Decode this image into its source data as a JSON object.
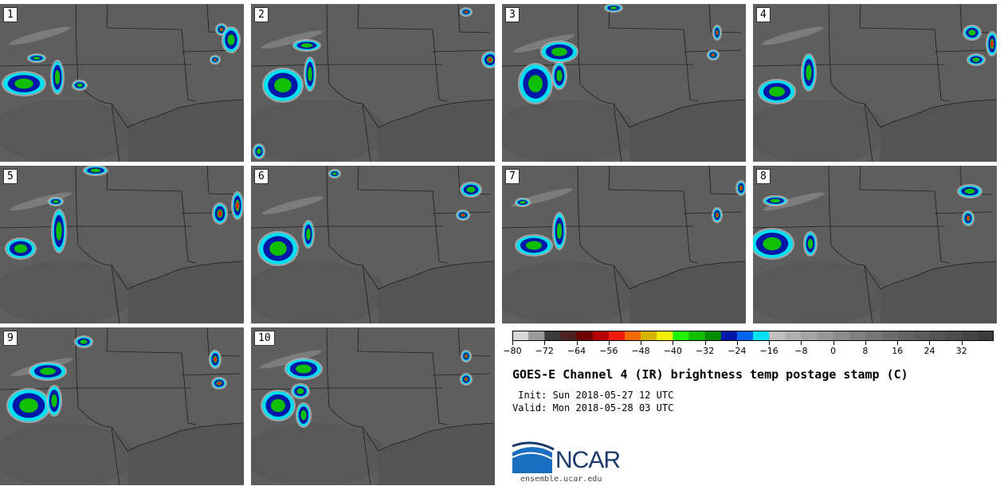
{
  "panels": [
    {
      "label": "1"
    },
    {
      "label": "2"
    },
    {
      "label": "3"
    },
    {
      "label": "4"
    },
    {
      "label": "5"
    },
    {
      "label": "6"
    },
    {
      "label": "7"
    },
    {
      "label": "8"
    },
    {
      "label": "9"
    },
    {
      "label": "10"
    }
  ],
  "colorbar": {
    "colors": [
      "#d8d8d8",
      "#9a9a9a",
      "#3a3a3a",
      "#4a2020",
      "#6e0000",
      "#b40000",
      "#ee1c0c",
      "#f26a00",
      "#d4b400",
      "#f0f000",
      "#22f000",
      "#10c000",
      "#008c00",
      "#0018a8",
      "#0064f0",
      "#00e0f0",
      "#c0c0c0",
      "#b0b0b0",
      "#a4a4a4",
      "#989898",
      "#8c8c8c",
      "#808080",
      "#767676",
      "#6c6c6c",
      "#646464",
      "#5c5c5c",
      "#545454",
      "#4c4c4c",
      "#444444",
      "#3c3c3c"
    ],
    "tick_labels": [
      "−80",
      "−72",
      "−64",
      "−56",
      "−48",
      "−40",
      "−32",
      "−24",
      "−16",
      "−8",
      "0",
      "8",
      "16",
      "24",
      "32"
    ],
    "min": -80,
    "max": 40
  },
  "title": "GOES-E Channel 4 (IR) brightness temp postage stamp (C)",
  "init": " Init: Sun 2018-05-27 12 UTC",
  "valid": "Valid: Mon 2018-05-28 03 UTC",
  "logo_text": "NCAR",
  "url": "ensemble.ucar.edu",
  "colors": {
    "background": "#5e5e5e",
    "border": "#1e1e1e",
    "logo_blue": "#1b3a6b"
  }
}
